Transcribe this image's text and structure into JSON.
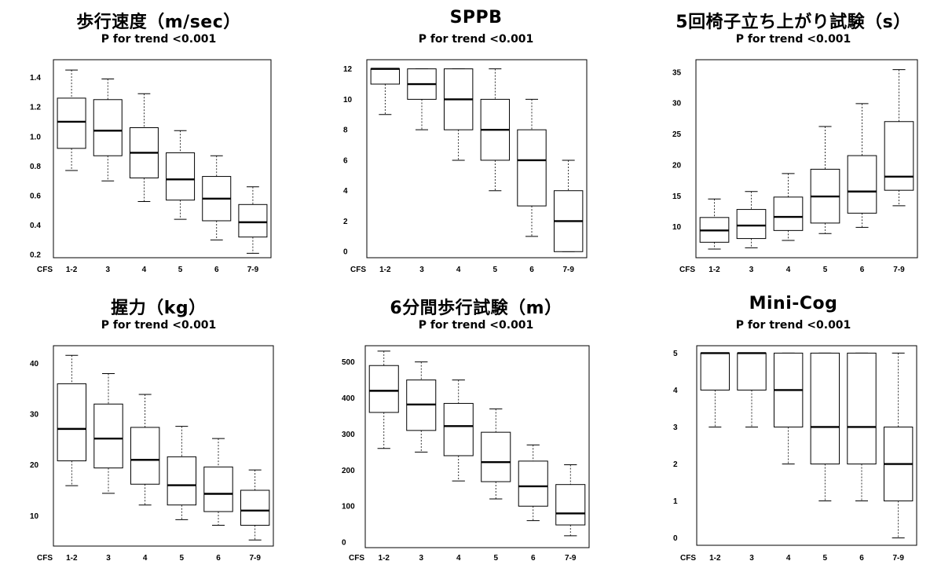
{
  "chart_data": [
    {
      "type": "box",
      "title": "歩行速度（m/sec）",
      "subtitle": "P for trend <0.001",
      "xlabel": "CFS",
      "categories": [
        "1-2",
        "3",
        "4",
        "5",
        "6",
        "7-9"
      ],
      "ylim": [
        0.18,
        1.52
      ],
      "yticks": [
        "0.2",
        "0.4",
        "0.6",
        "0.8",
        "1.0",
        "1.2",
        "1.4"
      ],
      "series": [
        {
          "name": "1-2",
          "min": 0.77,
          "q1": 0.92,
          "median": 1.1,
          "q3": 1.26,
          "max": 1.45
        },
        {
          "name": "3",
          "min": 0.7,
          "q1": 0.87,
          "median": 1.04,
          "q3": 1.25,
          "max": 1.39
        },
        {
          "name": "4",
          "min": 0.56,
          "q1": 0.72,
          "median": 0.89,
          "q3": 1.06,
          "max": 1.29
        },
        {
          "name": "5",
          "min": 0.44,
          "q1": 0.57,
          "median": 0.71,
          "q3": 0.89,
          "max": 1.04
        },
        {
          "name": "6",
          "min": 0.3,
          "q1": 0.43,
          "median": 0.58,
          "q3": 0.73,
          "max": 0.87
        },
        {
          "name": "7-9",
          "min": 0.21,
          "q1": 0.32,
          "median": 0.42,
          "q3": 0.54,
          "max": 0.66
        }
      ]
    },
    {
      "type": "box",
      "title": "SPPB",
      "subtitle": "P for trend <0.001",
      "xlabel": "CFS",
      "categories": [
        "1-2",
        "3",
        "4",
        "5",
        "6",
        "7-9"
      ],
      "ylim": [
        -0.4,
        12.6
      ],
      "yticks": [
        "0",
        "2",
        "4",
        "6",
        "8",
        "10",
        "12"
      ],
      "series": [
        {
          "name": "1-2",
          "min": 9,
          "q1": 11,
          "median": 12,
          "q3": 12,
          "max": 12
        },
        {
          "name": "3",
          "min": 8,
          "q1": 10,
          "median": 11,
          "q3": 12,
          "max": 12
        },
        {
          "name": "4",
          "min": 6,
          "q1": 8,
          "median": 10,
          "q3": 12,
          "max": 12
        },
        {
          "name": "5",
          "min": 4,
          "q1": 6,
          "median": 8,
          "q3": 10,
          "max": 12
        },
        {
          "name": "6",
          "min": 1,
          "q1": 3,
          "median": 6,
          "q3": 8,
          "max": 10
        },
        {
          "name": "7-9",
          "min": 0,
          "q1": 0,
          "median": 2,
          "q3": 4,
          "max": 6
        }
      ]
    },
    {
      "type": "box",
      "title": "5回椅子立ち上がり試験（s）",
      "subtitle": "P for trend <0.001",
      "xlabel": "CFS",
      "categories": [
        "1-2",
        "3",
        "4",
        "5",
        "6",
        "7-9"
      ],
      "ylim": [
        5.0,
        37.0
      ],
      "yticks": [
        "10",
        "15",
        "20",
        "25",
        "30",
        "35"
      ],
      "series": [
        {
          "name": "1-2",
          "min": 6.4,
          "q1": 7.5,
          "median": 9.4,
          "q3": 11.5,
          "max": 14.5
        },
        {
          "name": "3",
          "min": 6.6,
          "q1": 8.1,
          "median": 10.2,
          "q3": 12.8,
          "max": 15.7
        },
        {
          "name": "4",
          "min": 7.8,
          "q1": 9.4,
          "median": 11.6,
          "q3": 14.8,
          "max": 18.6
        },
        {
          "name": "5",
          "min": 8.9,
          "q1": 10.6,
          "median": 14.9,
          "q3": 19.3,
          "max": 26.2
        },
        {
          "name": "6",
          "min": 9.9,
          "q1": 12.2,
          "median": 15.7,
          "q3": 21.5,
          "max": 29.9
        },
        {
          "name": "7-9",
          "min": 13.4,
          "q1": 15.9,
          "median": 18.1,
          "q3": 27.0,
          "max": 35.4
        }
      ]
    },
    {
      "type": "box",
      "title": "握力（kg）",
      "subtitle": "P for trend <0.001",
      "xlabel": "CFS",
      "categories": [
        "1-2",
        "3",
        "4",
        "5",
        "6",
        "7-9"
      ],
      "ylim": [
        4.0,
        43.5
      ],
      "yticks": [
        "10",
        "20",
        "30",
        "40"
      ],
      "series": [
        {
          "name": "1-2",
          "min": 15.9,
          "q1": 20.8,
          "median": 27.1,
          "q3": 36.0,
          "max": 41.6
        },
        {
          "name": "3",
          "min": 14.4,
          "q1": 19.4,
          "median": 25.2,
          "q3": 32.0,
          "max": 38.0
        },
        {
          "name": "4",
          "min": 12.1,
          "q1": 16.2,
          "median": 21.0,
          "q3": 27.4,
          "max": 33.9
        },
        {
          "name": "5",
          "min": 9.2,
          "q1": 12.1,
          "median": 16.0,
          "q3": 21.6,
          "max": 27.6
        },
        {
          "name": "6",
          "min": 8.1,
          "q1": 10.8,
          "median": 14.3,
          "q3": 19.6,
          "max": 25.2
        },
        {
          "name": "7-9",
          "min": 5.2,
          "q1": 8.1,
          "median": 11.0,
          "q3": 15.0,
          "max": 19.0
        }
      ]
    },
    {
      "type": "box",
      "title": "6分間歩行試験（m）",
      "subtitle": "P for trend <0.001",
      "xlabel": "CFS",
      "categories": [
        "1-2",
        "3",
        "4",
        "5",
        "6",
        "7-9"
      ],
      "ylim": [
        -15,
        545
      ],
      "yticks": [
        "0",
        "100",
        "200",
        "300",
        "400",
        "500"
      ],
      "series": [
        {
          "name": "1-2",
          "min": 260,
          "q1": 360,
          "median": 420,
          "q3": 490,
          "max": 530
        },
        {
          "name": "3",
          "min": 250,
          "q1": 310,
          "median": 382,
          "q3": 450,
          "max": 500
        },
        {
          "name": "4",
          "min": 170,
          "q1": 240,
          "median": 322,
          "q3": 385,
          "max": 450
        },
        {
          "name": "5",
          "min": 120,
          "q1": 168,
          "median": 222,
          "q3": 305,
          "max": 370
        },
        {
          "name": "6",
          "min": 60,
          "q1": 100,
          "median": 155,
          "q3": 225,
          "max": 270
        },
        {
          "name": "7-9",
          "min": 18,
          "q1": 48,
          "median": 80,
          "q3": 160,
          "max": 215
        }
      ]
    },
    {
      "type": "box",
      "title": "Mini-Cog",
      "subtitle": "P for trend <0.001",
      "xlabel": "CFS",
      "categories": [
        "1-2",
        "3",
        "4",
        "5",
        "6",
        "7-9"
      ],
      "ylim": [
        -0.2,
        5.2
      ],
      "yticks": [
        "0",
        "1",
        "2",
        "3",
        "4",
        "5"
      ],
      "series": [
        {
          "name": "1-2",
          "min": 3,
          "q1": 4,
          "median": 5,
          "q3": 5,
          "max": 5
        },
        {
          "name": "3",
          "min": 3,
          "q1": 4,
          "median": 5,
          "q3": 5,
          "max": 5
        },
        {
          "name": "4",
          "min": 2,
          "q1": 3,
          "median": 4,
          "q3": 5,
          "max": 5
        },
        {
          "name": "5",
          "min": 1,
          "q1": 2,
          "median": 3,
          "q3": 5,
          "max": 5
        },
        {
          "name": "6",
          "min": 1,
          "q1": 2,
          "median": 3,
          "q3": 5,
          "max": 5
        },
        {
          "name": "7-9",
          "min": 0,
          "q1": 1,
          "median": 2,
          "q3": 3,
          "max": 5
        }
      ]
    }
  ]
}
